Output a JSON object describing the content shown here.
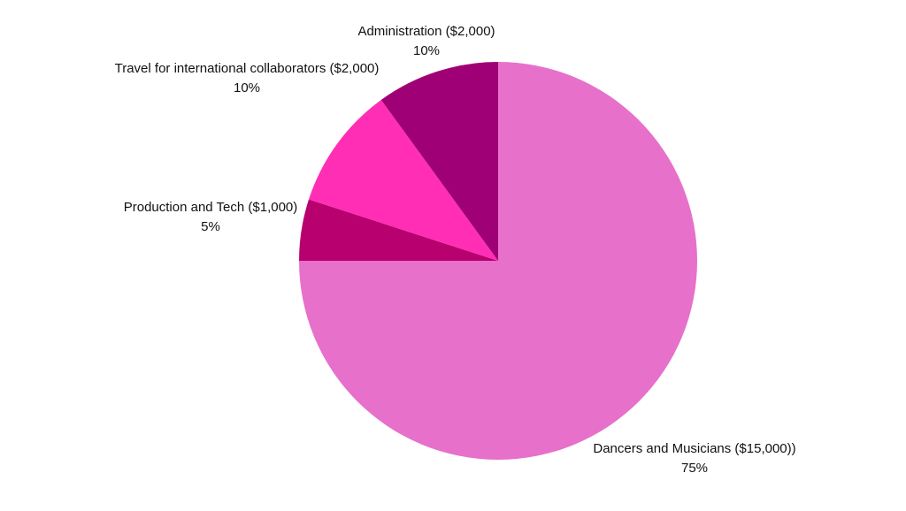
{
  "chart_data": {
    "type": "pie",
    "title": "",
    "start_angle_deg": 0,
    "direction": "clockwise",
    "slices": [
      {
        "label": "Dancers and Musicians ($15,000))",
        "value": 15000,
        "percent_label": "75%",
        "color": "#E770CB"
      },
      {
        "label": "Production and Tech ($1,000)",
        "value": 1000,
        "percent_label": "5%",
        "color": "#B8006E"
      },
      {
        "label": "Travel for international collaborators ($2,000)",
        "value": 2000,
        "percent_label": "10%",
        "color": "#FF2EB5"
      },
      {
        "label": "Administration ($2,000)",
        "value": 2000,
        "percent_label": "10%",
        "color": "#A00076"
      }
    ]
  }
}
